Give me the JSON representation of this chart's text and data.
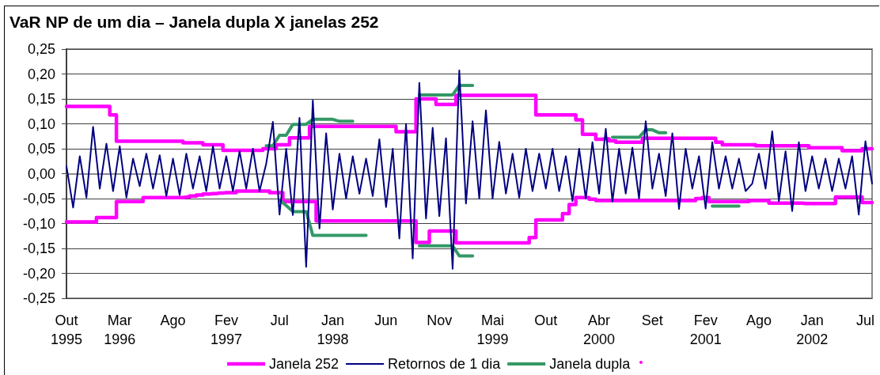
{
  "chart_data": {
    "type": "line",
    "title": "VaR NP de um dia – Janela dupla X janelas 252",
    "categories": [
      "Out\n1995",
      null,
      null,
      null,
      null,
      null,
      null,
      null,
      "Mar\n1996",
      null,
      null,
      null,
      null,
      null,
      null,
      null,
      "Ago",
      null,
      null,
      null,
      null,
      null,
      null,
      null,
      "Fev\n1997",
      null,
      null,
      null,
      null,
      null,
      null,
      null,
      "Jul",
      null,
      null,
      null,
      null,
      null,
      null,
      null,
      "Jan\n1998",
      null,
      null,
      null,
      null,
      null,
      null,
      null,
      "Jun",
      null,
      null,
      null,
      null,
      null,
      null,
      null,
      "Nov",
      null,
      null,
      null,
      null,
      null,
      null,
      null,
      "Mai\n1999",
      null,
      null,
      null,
      null,
      null,
      null,
      null,
      "Out",
      null,
      null,
      null,
      null,
      null,
      null,
      null,
      "Abr\n2000",
      null,
      null,
      null,
      null,
      null,
      null,
      null,
      "Set",
      null,
      null,
      null,
      null,
      null,
      null,
      null,
      "Fev\n2001",
      null,
      null,
      null,
      null,
      null,
      null,
      null,
      "Ago",
      null,
      null,
      null,
      null,
      null,
      null,
      null,
      "Jan\n2002",
      null,
      null,
      null,
      null,
      null,
      null,
      null,
      "Jul",
      null
    ],
    "series": [
      {
        "name": "Janela 252",
        "type": "step",
        "color": "#ff00ff",
        "values": [
          0.135,
          0.135,
          0.135,
          0.135,
          0.135,
          0.135,
          0.135,
          0.118,
          0.065,
          0.065,
          0.065,
          0.065,
          0.065,
          0.065,
          0.065,
          0.065,
          0.065,
          0.065,
          0.062,
          0.062,
          0.062,
          0.058,
          0.058,
          0.058,
          0.047,
          0.047,
          0.047,
          0.047,
          0.047,
          0.047,
          0.05,
          0.05,
          0.058,
          0.058,
          0.072,
          0.072,
          0.072,
          0.095,
          0.095,
          0.095,
          0.095,
          0.095,
          0.095,
          0.095,
          0.095,
          0.095,
          0.095,
          0.095,
          0.095,
          0.095,
          0.084,
          0.084,
          0.084,
          0.15,
          0.15,
          0.15,
          0.139,
          0.139,
          0.139,
          0.157,
          0.157,
          0.157,
          0.157,
          0.157,
          0.157,
          0.157,
          0.157,
          0.157,
          0.157,
          0.157,
          0.157,
          0.118,
          0.118,
          0.118,
          0.118,
          0.118,
          0.118,
          0.108,
          0.079,
          0.079,
          0.069,
          0.07,
          0.066,
          0.063,
          0.063,
          0.063,
          0.063,
          0.071,
          0.071,
          0.071,
          0.071,
          0.071,
          0.071,
          0.071,
          0.071,
          0.071,
          0.071,
          0.071,
          0.063,
          0.058,
          0.058,
          0.058,
          0.058,
          0.058,
          0.056,
          0.056,
          0.056,
          0.056,
          0.056,
          0.056,
          0.056,
          0.056,
          0.052,
          0.052,
          0.052,
          0.052,
          0.052,
          0.046,
          0.046,
          0.046,
          0.05,
          0.05
        ]
      },
      {
        "name": "Retornos de 1 dia",
        "color": "#000080",
        "values": [
          0.015,
          -0.068,
          0.035,
          -0.048,
          0.094,
          -0.03,
          0.06,
          -0.035,
          0.055,
          -0.048,
          0.03,
          -0.025,
          0.04,
          -0.03,
          0.037,
          -0.045,
          0.03,
          -0.043,
          0.04,
          -0.03,
          0.035,
          -0.035,
          0.055,
          -0.03,
          0.035,
          -0.035,
          0.045,
          -0.03,
          0.05,
          -0.035,
          0.02,
          0.104,
          -0.082,
          0.05,
          -0.083,
          0.112,
          -0.187,
          0.147,
          -0.11,
          0.081,
          -0.072,
          0.04,
          -0.05,
          0.035,
          -0.04,
          0.03,
          -0.045,
          0.069,
          -0.067,
          0.05,
          -0.13,
          0.1,
          -0.17,
          0.182,
          -0.09,
          0.092,
          -0.085,
          0.071,
          -0.191,
          0.207,
          -0.06,
          0.105,
          -0.05,
          0.127,
          -0.05,
          0.064,
          -0.04,
          0.04,
          -0.048,
          0.05,
          -0.035,
          0.04,
          -0.03,
          0.05,
          -0.035,
          0.035,
          -0.055,
          0.05,
          -0.05,
          0.063,
          -0.04,
          0.09,
          -0.056,
          0.05,
          -0.04,
          0.052,
          -0.05,
          0.105,
          -0.03,
          0.04,
          -0.045,
          0.081,
          -0.071,
          0.05,
          -0.03,
          0.035,
          -0.07,
          0.063,
          -0.03,
          0.035,
          -0.03,
          0.03,
          -0.035,
          -0.02,
          0.04,
          -0.03,
          0.085,
          -0.055,
          0.045,
          -0.075,
          0.063,
          -0.035,
          0.035,
          -0.03,
          0.03,
          -0.035,
          0.03,
          -0.03,
          0.035,
          -0.082,
          0.065,
          -0.02
        ]
      },
      {
        "name": "Janela dupla",
        "color": "#339966",
        "values": [
          null,
          null,
          null,
          null,
          null,
          null,
          null,
          null,
          null,
          null,
          null,
          null,
          null,
          null,
          null,
          null,
          null,
          null,
          null,
          null,
          null,
          null,
          null,
          null,
          null,
          null,
          null,
          null,
          null,
          null,
          0.056,
          0.056,
          0.077,
          0.077,
          0.099,
          0.099,
          0.099,
          0.109,
          0.109,
          0.109,
          0.109,
          0.105,
          0.105,
          0.105,
          null,
          null,
          null,
          null,
          null,
          null,
          null,
          null,
          null,
          0.158,
          0.158,
          0.158,
          0.158,
          0.158,
          0.158,
          0.177,
          0.177,
          0.177,
          null,
          null,
          null,
          null,
          null,
          null,
          null,
          null,
          null,
          null,
          null,
          null,
          null,
          null,
          null,
          null,
          null,
          null,
          null,
          null,
          0.073,
          0.073,
          0.073,
          0.073,
          0.073,
          0.088,
          0.088,
          0.082,
          0.082,
          null,
          null,
          null,
          null,
          null,
          null,
          null,
          null,
          null,
          null,
          null,
          null,
          null,
          null,
          null,
          null,
          null,
          null,
          null,
          null,
          null,
          null,
          null,
          null,
          null,
          null,
          null,
          null,
          null,
          null,
          null
        ]
      },
      {
        "type": "step",
        "color": "#ff00ff",
        "values": [
          -0.097,
          -0.097,
          -0.097,
          -0.097,
          -0.097,
          -0.088,
          -0.088,
          -0.088,
          -0.056,
          -0.056,
          -0.056,
          -0.056,
          -0.048,
          -0.048,
          -0.048,
          -0.048,
          -0.048,
          -0.048,
          -0.047,
          -0.045,
          -0.043,
          -0.041,
          -0.04,
          -0.039,
          -0.038,
          -0.038,
          -0.035,
          -0.035,
          -0.035,
          -0.035,
          -0.035,
          -0.038,
          -0.038,
          -0.056,
          -0.056,
          -0.056,
          -0.056,
          -0.056,
          -0.095,
          -0.095,
          -0.095,
          -0.095,
          -0.095,
          -0.095,
          -0.095,
          -0.095,
          -0.095,
          -0.095,
          -0.095,
          -0.095,
          -0.095,
          -0.095,
          -0.095,
          -0.138,
          -0.138,
          -0.115,
          -0.115,
          -0.115,
          -0.115,
          -0.139,
          -0.139,
          -0.139,
          -0.139,
          -0.139,
          -0.139,
          -0.139,
          -0.139,
          -0.139,
          -0.139,
          -0.139,
          -0.128,
          -0.093,
          -0.093,
          -0.093,
          -0.093,
          -0.08,
          -0.062,
          -0.048,
          -0.048,
          -0.051,
          -0.054,
          -0.054,
          -0.054,
          -0.054,
          -0.054,
          -0.054,
          -0.054,
          -0.054,
          -0.054,
          -0.054,
          -0.054,
          -0.054,
          -0.054,
          -0.054,
          -0.054,
          -0.05,
          -0.048,
          -0.056,
          -0.056,
          -0.056,
          -0.056,
          -0.056,
          -0.056,
          -0.054,
          -0.054,
          -0.054,
          -0.059,
          -0.059,
          -0.059,
          -0.059,
          -0.059,
          -0.06,
          -0.06,
          -0.06,
          -0.06,
          -0.06,
          -0.047,
          -0.047,
          -0.047,
          -0.047,
          -0.058,
          -0.058
        ]
      },
      {
        "color": "#339966",
        "values": [
          null,
          null,
          null,
          null,
          null,
          null,
          null,
          null,
          null,
          null,
          null,
          null,
          null,
          null,
          null,
          null,
          null,
          null,
          null,
          null,
          null,
          null,
          null,
          null,
          null,
          null,
          null,
          null,
          null,
          null,
          null,
          null,
          -0.053,
          -0.064,
          -0.076,
          -0.076,
          -0.076,
          -0.124,
          -0.124,
          -0.124,
          -0.124,
          -0.124,
          -0.124,
          -0.124,
          -0.124,
          -0.124,
          null,
          null,
          null,
          null,
          null,
          null,
          null,
          -0.145,
          -0.145,
          -0.145,
          -0.145,
          -0.145,
          -0.145,
          -0.165,
          -0.165,
          -0.165,
          null,
          null,
          null,
          null,
          null,
          null,
          null,
          null,
          null,
          null,
          null,
          null,
          null,
          null,
          null,
          null,
          null,
          null,
          null,
          null,
          null,
          null,
          null,
          null,
          null,
          null,
          null,
          null,
          null,
          null,
          null,
          null,
          null,
          null,
          null,
          -0.065,
          -0.065,
          -0.065,
          -0.065,
          -0.065,
          null,
          null,
          null,
          null,
          null,
          null,
          null,
          null,
          null,
          null,
          null,
          null,
          null,
          null,
          null,
          null,
          null,
          null,
          null,
          null
        ]
      }
    ],
    "ylim": [
      -0.25,
      0.25
    ],
    "yticks": [
      {
        "value": -0.25,
        "label": "-0,25"
      },
      {
        "value": -0.2,
        "label": "-0,20"
      },
      {
        "value": -0.15,
        "label": "-0,15"
      },
      {
        "value": -0.1,
        "label": "-0,10"
      },
      {
        "value": -0.05,
        "label": "-0,05"
      },
      {
        "value": 0,
        "label": "0,00"
      },
      {
        "value": 0.05,
        "label": "0,05"
      },
      {
        "value": 0.1,
        "label": "0,10"
      },
      {
        "value": 0.15,
        "label": "0,15"
      },
      {
        "value": 0.2,
        "label": "0,20"
      },
      {
        "value": 0.25,
        "label": "0,25"
      }
    ],
    "grid": "y",
    "legend": "bottom"
  }
}
